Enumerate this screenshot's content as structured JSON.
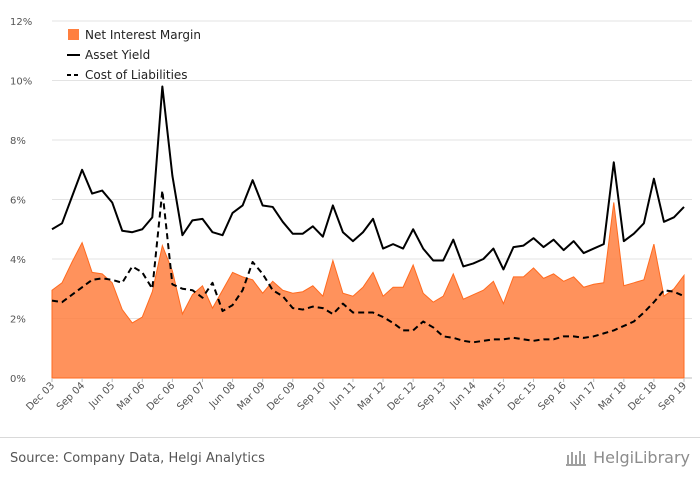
{
  "chart_data": {
    "type": "area+line",
    "title": "",
    "xlabel": "",
    "ylabel": "",
    "ylim": [
      0,
      12
    ],
    "yticks": [
      "0%",
      "2%",
      "4%",
      "6%",
      "8%",
      "10%",
      "12%"
    ],
    "ytick_values": [
      0,
      2,
      4,
      6,
      8,
      10,
      12
    ],
    "x_tick_labels": [
      "Dec 03",
      "Sep 04",
      "Jun 05",
      "Mar 06",
      "Dec 06",
      "Sep 07",
      "Jun 08",
      "Mar 09",
      "Dec 09",
      "Sep 10",
      "Jun 11",
      "Mar 12",
      "Dec 12",
      "Sep 13",
      "Jun 14",
      "Mar 15",
      "Dec 15",
      "Sep 16",
      "Jun 17",
      "Mar 18",
      "Dec 18",
      "Sep 19"
    ],
    "x_tick_index": [
      0,
      3,
      6,
      9,
      12,
      15,
      18,
      21,
      24,
      27,
      30,
      33,
      36,
      39,
      42,
      45,
      48,
      51,
      54,
      57,
      60,
      63
    ],
    "periods": [
      "Dec 03",
      "Mar 04",
      "Jun 04",
      "Sep 04",
      "Dec 04",
      "Mar 05",
      "Jun 05",
      "Sep 05",
      "Dec 05",
      "Mar 06",
      "Jun 06",
      "Sep 06",
      "Dec 06",
      "Mar 07",
      "Jun 07",
      "Sep 07",
      "Dec 07",
      "Mar 08",
      "Jun 08",
      "Sep 08",
      "Dec 08",
      "Mar 09",
      "Jun 09",
      "Sep 09",
      "Dec 09",
      "Mar 10",
      "Jun 10",
      "Sep 10",
      "Dec 10",
      "Mar 11",
      "Jun 11",
      "Sep 11",
      "Dec 11",
      "Mar 12",
      "Jun 12",
      "Sep 12",
      "Dec 12",
      "Mar 13",
      "Jun 13",
      "Sep 13",
      "Dec 13",
      "Mar 14",
      "Jun 14",
      "Sep 14",
      "Dec 14",
      "Mar 15",
      "Jun 15",
      "Sep 15",
      "Dec 15",
      "Mar 16",
      "Jun 16",
      "Sep 16",
      "Dec 16",
      "Mar 17",
      "Jun 17",
      "Sep 17",
      "Dec 17",
      "Mar 18",
      "Jun 18",
      "Sep 18",
      "Dec 18",
      "Mar 19",
      "Jun 19",
      "Sep 19"
    ],
    "legend": [
      {
        "name": "Net Interest Margin",
        "style": "area",
        "color": "#ff7f3f"
      },
      {
        "name": "Asset Yield",
        "style": "solid",
        "color": "#000000"
      },
      {
        "name": "Cost of Liabilities",
        "style": "dashed",
        "color": "#000000"
      }
    ],
    "series": [
      {
        "name": "Net Interest Margin",
        "style": "area",
        "color": "#ff7f3f",
        "values": [
          2.95,
          3.2,
          3.9,
          4.55,
          3.55,
          3.5,
          3.2,
          2.3,
          1.85,
          2.05,
          2.9,
          4.45,
          3.6,
          2.15,
          2.8,
          3.1,
          2.35,
          2.95,
          3.55,
          3.4,
          3.3,
          2.85,
          3.25,
          2.95,
          2.85,
          2.9,
          3.1,
          2.75,
          3.95,
          2.85,
          2.75,
          3.05,
          3.55,
          2.75,
          3.05,
          3.05,
          3.8,
          2.85,
          2.55,
          2.75,
          3.5,
          2.65,
          2.8,
          2.95,
          3.25,
          2.5,
          3.4,
          3.4,
          3.7,
          3.35,
          3.5,
          3.25,
          3.4,
          3.05,
          3.15,
          3.2,
          5.9,
          3.1,
          3.2,
          3.3,
          4.5,
          2.75,
          3.0,
          3.45
        ]
      },
      {
        "name": "Asset Yield",
        "style": "solid",
        "color": "#000000",
        "values": [
          5.0,
          5.2,
          6.1,
          7.0,
          6.2,
          6.3,
          5.9,
          4.95,
          4.9,
          5.0,
          5.4,
          9.8,
          6.8,
          4.8,
          5.3,
          5.35,
          4.9,
          4.8,
          5.55,
          5.8,
          6.65,
          5.8,
          5.75,
          5.25,
          4.85,
          4.85,
          5.1,
          4.75,
          5.8,
          4.9,
          4.6,
          4.9,
          5.35,
          4.35,
          4.5,
          4.35,
          5.0,
          4.35,
          3.95,
          3.95,
          4.65,
          3.75,
          3.85,
          4.0,
          4.35,
          3.65,
          4.4,
          4.45,
          4.7,
          4.4,
          4.65,
          4.3,
          4.6,
          4.2,
          4.35,
          4.5,
          7.25,
          4.6,
          4.85,
          5.2,
          6.7,
          5.25,
          5.4,
          5.75
        ]
      },
      {
        "name": "Cost of Liabilities",
        "style": "dashed",
        "color": "#000000",
        "values": [
          2.6,
          2.55,
          2.8,
          3.05,
          3.3,
          3.35,
          3.3,
          3.2,
          3.75,
          3.55,
          3.0,
          6.3,
          3.15,
          3.0,
          2.95,
          2.7,
          3.2,
          2.25,
          2.45,
          2.95,
          3.9,
          3.5,
          2.95,
          2.75,
          2.35,
          2.3,
          2.4,
          2.35,
          2.15,
          2.5,
          2.2,
          2.2,
          2.2,
          2.05,
          1.85,
          1.6,
          1.6,
          1.9,
          1.7,
          1.4,
          1.35,
          1.25,
          1.2,
          1.25,
          1.3,
          1.3,
          1.35,
          1.3,
          1.25,
          1.3,
          1.3,
          1.4,
          1.4,
          1.35,
          1.4,
          1.5,
          1.6,
          1.75,
          1.9,
          2.2,
          2.55,
          2.95,
          2.9,
          2.75
        ]
      }
    ]
  },
  "footer": {
    "source": "Source: Company Data, Helgi Analytics",
    "brand": "HelgiLibrary"
  },
  "colors": {
    "accent": "#ff7f3f",
    "grid": "#e3e3e3",
    "text": "#555555"
  }
}
